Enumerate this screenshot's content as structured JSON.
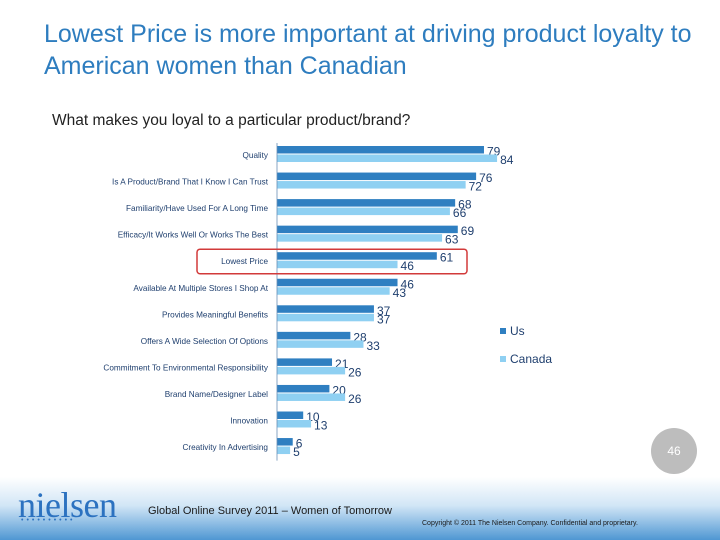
{
  "slide": {
    "title": "Lowest Price is more important at driving product loyalty to American women than Canadian",
    "subtitle": "What makes you loyal to a particular product/brand?",
    "page_number": "46",
    "footer_text": "Global Online Survey 2011 – Women of Tomorrow",
    "copyright": "Copyright © 2011 The Nielsen Company. Confidential and proprietary.",
    "logo_text": "nielsen",
    "logo_dots": "••••••••••"
  },
  "colors": {
    "us": "#2f7fc1",
    "canada": "#8fd0f2",
    "title": "#2e7dbf",
    "highlight": "#d23a3a"
  },
  "chart_data": {
    "type": "bar",
    "orientation": "horizontal",
    "title": "What makes you loyal to a particular product/brand?",
    "categories": [
      "Quality",
      "Is A Product/Brand That I Know I Can Trust",
      "Familiarity/Have Used For A Long Time",
      "Efficacy/It Works Well Or Works The Best",
      "Lowest Price",
      "Available At Multiple Stores I Shop At",
      "Provides Meaningful Benefits",
      "Offers A Wide Selection Of Options",
      "Commitment To Environmental Responsibility",
      "Brand Name/Designer Label",
      "Innovation",
      "Creativity In Advertising"
    ],
    "series": [
      {
        "name": "Us",
        "values": [
          79,
          76,
          68,
          69,
          61,
          46,
          37,
          28,
          21,
          20,
          10,
          6
        ]
      },
      {
        "name": "Canada",
        "values": [
          84,
          72,
          66,
          63,
          46,
          43,
          37,
          33,
          26,
          26,
          13,
          5
        ]
      }
    ],
    "highlighted_category": "Lowest Price",
    "xlim": [
      0,
      100
    ],
    "grid": false,
    "legend": "right"
  }
}
